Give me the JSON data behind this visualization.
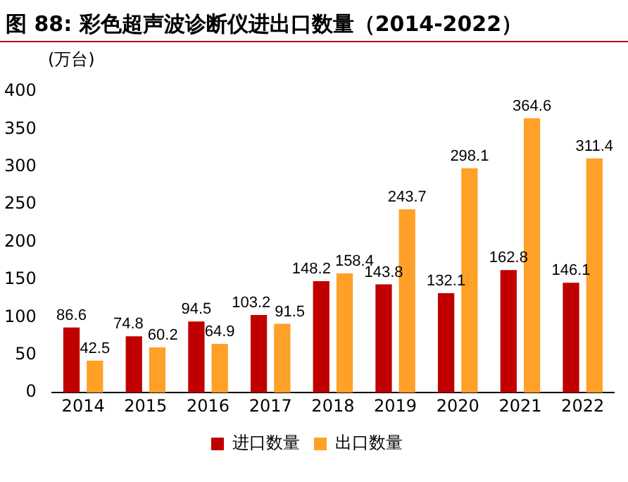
{
  "chart_data": {
    "type": "bar",
    "title": "图 88: 彩色超声波诊断仪进出口数量（2014-2022）",
    "ylabel": "(万台)",
    "categories": [
      "2014",
      "2015",
      "2016",
      "2017",
      "2018",
      "2019",
      "2020",
      "2021",
      "2022"
    ],
    "series": [
      {
        "name": "进口数量",
        "color": "#c00000",
        "values": [
          86.6,
          74.8,
          94.5,
          103.2,
          148.2,
          143.8,
          132.1,
          162.8,
          146.1
        ]
      },
      {
        "name": "出口数量",
        "color": "#ffa028",
        "values": [
          42.5,
          60.2,
          64.9,
          91.5,
          158.4,
          243.7,
          298.1,
          364.6,
          311.4
        ]
      }
    ],
    "ylim": [
      0,
      400
    ],
    "yticks": [
      0,
      50,
      100,
      150,
      200,
      250,
      300,
      350,
      400
    ],
    "grid": false,
    "legend": "bottom",
    "data_labels": true
  }
}
